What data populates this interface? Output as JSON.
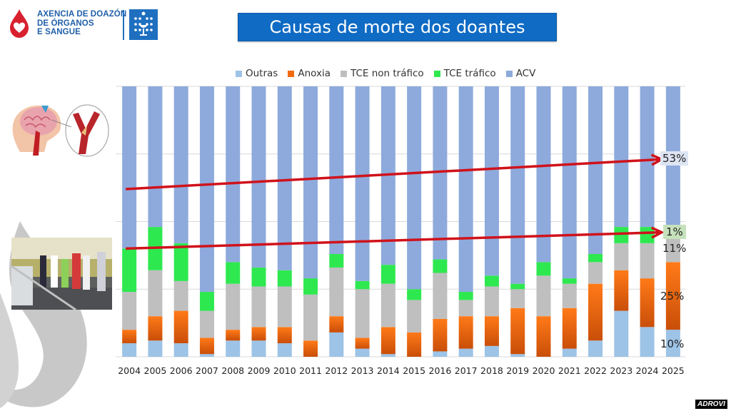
{
  "logo": {
    "lines": [
      "AXENCIA DE DOAZÓN",
      "DE ÓRGANOS",
      "E SANGUE"
    ],
    "brand_color": "#1f5fa8",
    "drop_color": "#d8212f"
  },
  "slide_title": "Causas de morte dos doantes",
  "images": {
    "left_top": "stroke-illustration",
    "left_bottom": "traffic-accident-photo"
  },
  "annotations": {
    "acv_trend_label": "53%",
    "tce_trafico_label": "1%",
    "tce_non_trafico_label": "11%",
    "anoxia_label": "25%",
    "outras_label": "10%",
    "arrow_color": "#d0121b"
  },
  "watermark": "ADROVI",
  "chart_data": {
    "type": "bar",
    "stacked": true,
    "normalized_percent": true,
    "title": "Causas de morte dos doantes",
    "xlabel": "",
    "ylabel": "",
    "ylim": [
      0,
      100
    ],
    "grid": true,
    "legend_position": "top",
    "categories": [
      "2004",
      "2005",
      "2006",
      "2007",
      "2008",
      "2009",
      "2010",
      "2011",
      "2012",
      "2013",
      "2014",
      "2015",
      "2016",
      "2017",
      "2018",
      "2019",
      "2020",
      "2021",
      "2022",
      "2023",
      "2024",
      "2025"
    ],
    "series": [
      {
        "name": "Outras",
        "color": "#9dc3e6",
        "values": [
          5,
          6,
          5,
          1,
          6,
          6,
          5,
          0,
          9,
          3,
          1,
          0,
          2,
          3,
          4,
          1,
          0,
          3,
          6,
          17,
          11,
          10
        ]
      },
      {
        "name": "Anoxia",
        "color": "#f26a10",
        "values": [
          5,
          9,
          12,
          6,
          4,
          5,
          6,
          6,
          6,
          4,
          10,
          9,
          12,
          12,
          11,
          17,
          15,
          15,
          21,
          15,
          18,
          25
        ]
      },
      {
        "name": "TCE non tráfico",
        "color": "#bfbfbf",
        "values": [
          14,
          17,
          11,
          10,
          17,
          15,
          15,
          17,
          18,
          18,
          16,
          12,
          17,
          6,
          11,
          7,
          15,
          9,
          8,
          10,
          13,
          11
        ]
      },
      {
        "name": "TCE tráfico",
        "color": "#2ee84f",
        "values": [
          16,
          16,
          14,
          7,
          8,
          7,
          6,
          6,
          5,
          3,
          7,
          4,
          5,
          3,
          4,
          2,
          5,
          2,
          3,
          6,
          6,
          1
        ]
      },
      {
        "name": "ACV",
        "color": "#8eaadc",
        "values": [
          60,
          52,
          58,
          76,
          65,
          67,
          68,
          71,
          62,
          72,
          66,
          75,
          64,
          76,
          70,
          73,
          65,
          71,
          62,
          52,
          52,
          53
        ]
      }
    ],
    "trend_arrows": [
      {
        "series": "ACV",
        "from": {
          "x": "2004",
          "y": 62
        },
        "to": {
          "x": "2025",
          "y": 73
        },
        "label": "53%"
      },
      {
        "series": "TCE tráfico",
        "from": {
          "x": "2004",
          "y": 40
        },
        "to": {
          "x": "2025",
          "y": 46
        },
        "label": "1%"
      }
    ]
  }
}
